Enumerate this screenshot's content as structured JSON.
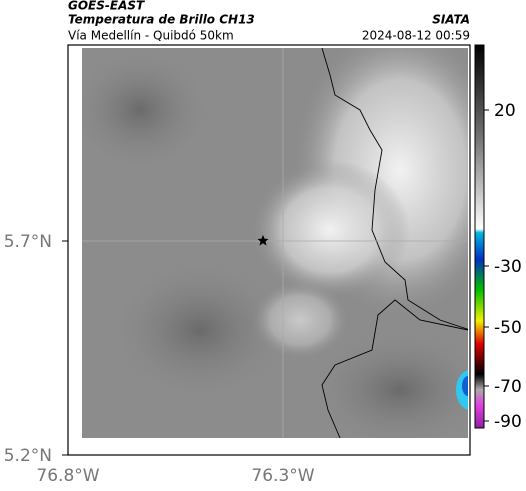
{
  "header": {
    "source": "GOES-EAST",
    "title": "Temperatura de Brillo CH13",
    "subtitle": "Vía Medellín - Quibdó 50km",
    "brand": "SIATA",
    "timestamp": "2024-08-12 00:59"
  },
  "axes": {
    "lat_labels": [
      "5.7°N",
      "5.2°N"
    ],
    "lon_labels": [
      "76.8°W",
      "76.3°W"
    ]
  },
  "colorbar": {
    "ticks": [
      "20",
      "-30",
      "-50",
      "-70",
      "-90"
    ]
  }
}
